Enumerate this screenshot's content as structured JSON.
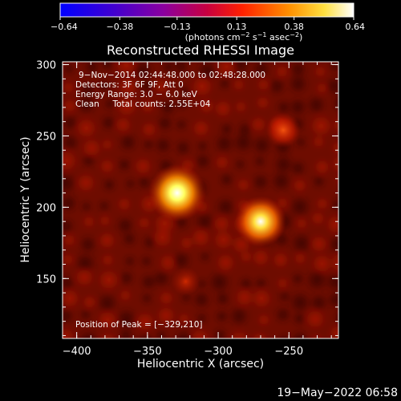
{
  "chart_data": {
    "type": "heatmap",
    "title": "Reconstructed RHESSI Image",
    "xlabel": "Heliocentric X (arcsec)",
    "ylabel": "Heliocentric Y (arcsec)",
    "xlim": [
      -410,
      -215
    ],
    "ylim": [
      108,
      302
    ],
    "x_ticks": [
      -400,
      -350,
      -300,
      -250
    ],
    "y_ticks": [
      150,
      200,
      250,
      300
    ],
    "x_tick_labels": [
      "−400",
      "−350",
      "−300",
      "−250"
    ],
    "y_tick_labels": [
      "150",
      "200",
      "250",
      "300"
    ],
    "colorbar": {
      "min": -0.64,
      "max": 0.64,
      "ticks": [
        -0.64,
        -0.38,
        -0.13,
        0.13,
        0.38,
        0.64
      ],
      "tick_labels": [
        "−0.64",
        "−0.38",
        "−0.13",
        "0.13",
        "0.38",
        "0.64"
      ],
      "unit_main": "(photons cm",
      "unit_exp1": "−2",
      "unit_mid": " s",
      "unit_exp2": "−1",
      "unit_end": " asec",
      "unit_exp3": "−2",
      "unit_close": ")",
      "colors": [
        "#0000ff",
        "#6000c0",
        "#b00080",
        "#ff2000",
        "#ff9000",
        "#ffff70",
        "#ffffff"
      ]
    },
    "sources": [
      {
        "x": -329,
        "y": 210,
        "value": 0.64
      },
      {
        "x": -270,
        "y": 190,
        "value": 0.55
      },
      {
        "x": -254,
        "y": 254,
        "value": 0.22
      },
      {
        "x": -323,
        "y": 148,
        "value": 0.14
      }
    ],
    "annotations": {
      "line1": "9−Nov−2014 02:44:48.000 to 02:48:28.000",
      "line2": "Detectors: 3F 6F 9F, Att 0",
      "line3": "Energy Range: 3.0 − 6.0 keV",
      "line4": "Clean     Total counts: 2.55E+04",
      "peak": "Position of Peak = [−329,210]"
    }
  },
  "footer": {
    "timestamp": "19−May−2022 06:58"
  }
}
